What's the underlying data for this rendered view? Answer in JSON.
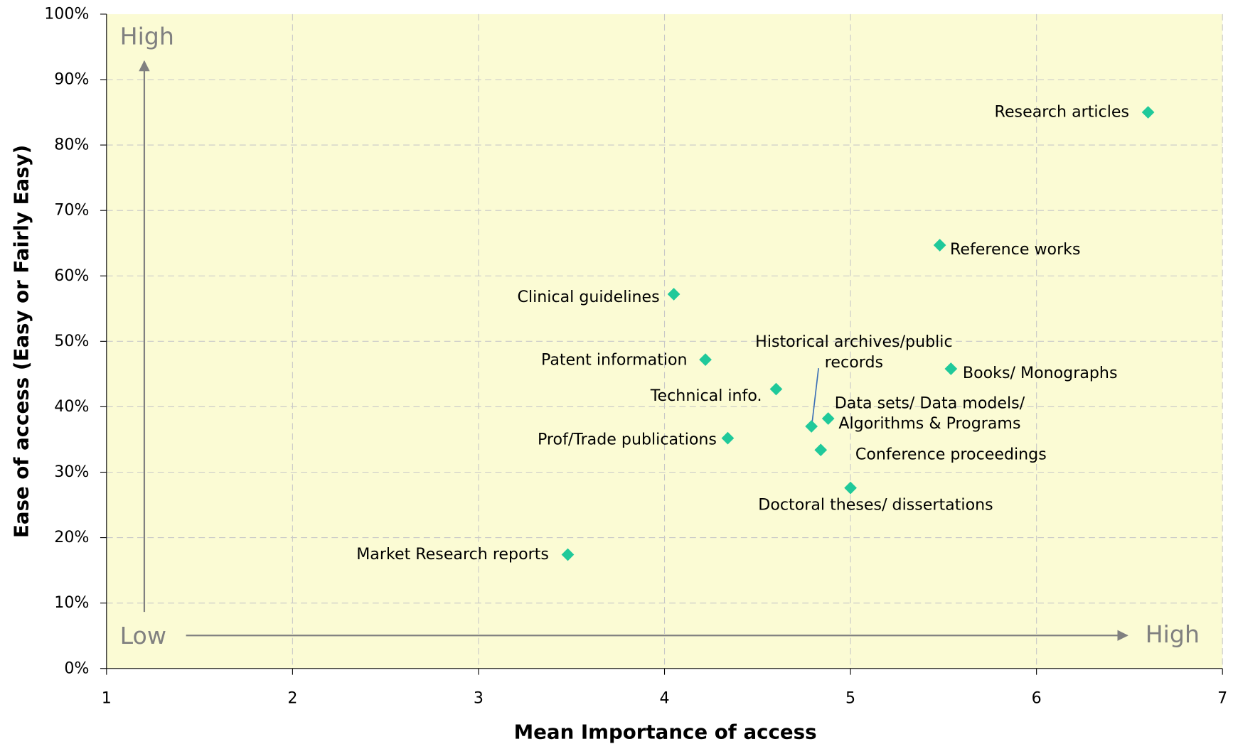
{
  "chart_data": {
    "type": "scatter",
    "x_label": "Mean Importance of access",
    "y_label": "Ease of access (Easy or Fairly Easy)",
    "annotations": {
      "y_high": "High",
      "x_low": "Low",
      "x_high": "High"
    },
    "xlim": [
      1,
      7
    ],
    "ylim": [
      0,
      100
    ],
    "xticks": [
      1,
      2,
      3,
      4,
      5,
      6,
      7
    ],
    "yticks": [
      {
        "value": 0,
        "label": "0%"
      },
      {
        "value": 10,
        "label": "10%"
      },
      {
        "value": 20,
        "label": "20%"
      },
      {
        "value": 30,
        "label": "30%"
      },
      {
        "value": 40,
        "label": "40%"
      },
      {
        "value": 50,
        "label": "50%"
      },
      {
        "value": 60,
        "label": "60%"
      },
      {
        "value": 70,
        "label": "70%"
      },
      {
        "value": 80,
        "label": "80%"
      },
      {
        "value": 90,
        "label": "90%"
      },
      {
        "value": 100,
        "label": "100%"
      }
    ],
    "grid": true,
    "color": "#1fc99a",
    "x": [
      6.6,
      5.48,
      4.05,
      4.22,
      5.54,
      4.6,
      4.88,
      4.79,
      4.34,
      4.84,
      5.0,
      3.48
    ],
    "values": [
      85,
      64.7,
      57.2,
      47.2,
      45.8,
      42.7,
      38.2,
      37,
      35.2,
      33.4,
      27.6,
      17.4
    ],
    "labels": [
      [
        "Research articles"
      ],
      [
        "Reference works"
      ],
      [
        "Clinical guidelines"
      ],
      [
        "Patent information"
      ],
      [
        "Books/ Monographs"
      ],
      [
        "Technical info."
      ],
      [
        "Data sets/ Data models/",
        "Algorithms & Programs"
      ],
      [
        "Historical archives/public",
        "records"
      ],
      [
        "Prof/Trade publications"
      ],
      [
        "Conference proceedings"
      ],
      [
        "Doctoral theses/ dissertations"
      ],
      [
        "Market Research reports"
      ]
    ]
  }
}
